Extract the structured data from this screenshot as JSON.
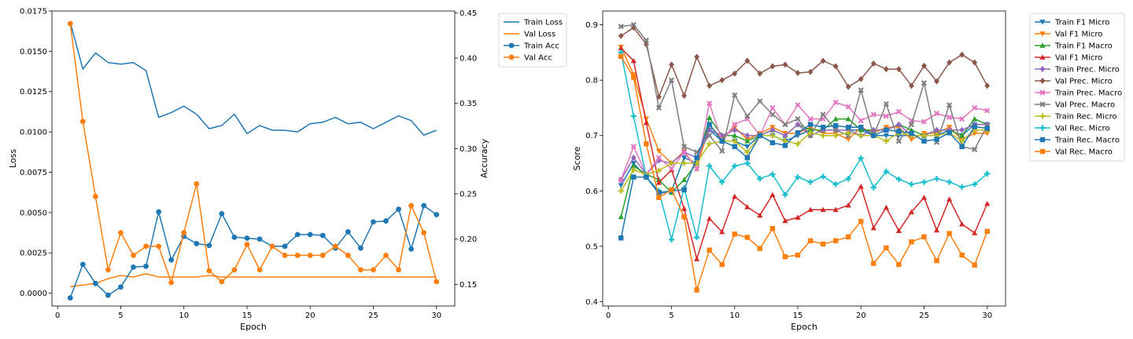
{
  "chart_data": [
    {
      "type": "line",
      "xlabel": "Epoch",
      "ylabel": "Loss",
      "y2label": "Accuracy",
      "xlim": [
        -0.45,
        31.45
      ],
      "ylim": [
        -0.0008,
        0.0175
      ],
      "y2lim": [
        0.126,
        0.452
      ],
      "xticks": [
        0,
        5,
        10,
        15,
        20,
        25,
        30
      ],
      "yticks": [
        0.0,
        0.0025,
        0.005,
        0.0075,
        0.01,
        0.0125,
        0.015,
        0.0175
      ],
      "ytick_labels": [
        "0.0000",
        "0.0025",
        "0.0050",
        "0.0075",
        "0.0100",
        "0.0125",
        "0.0150",
        "0.0175"
      ],
      "y2ticks": [
        0.15,
        0.2,
        0.25,
        0.3,
        0.35,
        0.4,
        0.45
      ],
      "y2tick_labels": [
        "0.15",
        "0.20",
        "0.25",
        "0.30",
        "0.35",
        "0.40",
        "0.45"
      ],
      "grid": false,
      "legend": "outside-right",
      "x": [
        1,
        2,
        3,
        4,
        5,
        6,
        7,
        8,
        9,
        10,
        11,
        12,
        13,
        14,
        15,
        16,
        17,
        18,
        19,
        20,
        21,
        22,
        23,
        24,
        25,
        26,
        27,
        28,
        29,
        30
      ],
      "series": [
        {
          "name": "Train Loss",
          "axis": "left",
          "color": "#1f77b4",
          "marker": "none",
          "values": [
            0.0168,
            0.0139,
            0.0149,
            0.0143,
            0.0142,
            0.0143,
            0.0138,
            0.0109,
            0.0112,
            0.0116,
            0.0111,
            0.0102,
            0.0104,
            0.0111,
            0.0099,
            0.0104,
            0.0101,
            0.0101,
            0.01,
            0.0105,
            0.0106,
            0.0109,
            0.0105,
            0.0106,
            0.0102,
            0.0106,
            0.011,
            0.0107,
            0.0098,
            0.0101
          ]
        },
        {
          "name": "Val Loss",
          "axis": "left",
          "color": "#ff7f0e",
          "marker": "none",
          "values": [
            0.0004,
            0.0005,
            0.0006,
            0.0009,
            0.0011,
            0.001,
            0.0012,
            0.001,
            0.001,
            0.001,
            0.001,
            0.0011,
            0.001,
            0.001,
            0.001,
            0.001,
            0.001,
            0.001,
            0.001,
            0.001,
            0.001,
            0.001,
            0.001,
            0.001,
            0.001,
            0.001,
            0.001,
            0.001,
            0.001,
            0.001
          ]
        },
        {
          "name": "Train Acc",
          "axis": "right",
          "color": "#1f77b4",
          "marker": "circle",
          "values": [
            0.135,
            0.172,
            0.151,
            0.138,
            0.147,
            0.169,
            0.17,
            0.23,
            0.177,
            0.203,
            0.195,
            0.193,
            0.228,
            0.202,
            0.201,
            0.2,
            0.192,
            0.192,
            0.205,
            0.205,
            0.204,
            0.19,
            0.208,
            0.19,
            0.219,
            0.22,
            0.233,
            0.189,
            0.237,
            0.227
          ]
        },
        {
          "name": "Val Acc",
          "axis": "right",
          "color": "#ff7f0e",
          "marker": "circle",
          "values": [
            0.438,
            0.33,
            0.247,
            0.166,
            0.207,
            0.182,
            0.192,
            0.192,
            0.152,
            0.207,
            0.261,
            0.165,
            0.153,
            0.166,
            0.194,
            0.166,
            0.192,
            0.182,
            0.182,
            0.182,
            0.182,
            0.192,
            0.182,
            0.166,
            0.166,
            0.182,
            0.166,
            0.237,
            0.207,
            0.153
          ]
        }
      ]
    },
    {
      "type": "line",
      "xlabel": "Epoch",
      "ylabel": "Score",
      "xlim": [
        -0.45,
        31.45
      ],
      "ylim": [
        0.392,
        0.925
      ],
      "xticks": [
        0,
        5,
        10,
        15,
        20,
        25,
        30
      ],
      "yticks": [
        0.4,
        0.5,
        0.6,
        0.7,
        0.8,
        0.9
      ],
      "ytick_labels": [
        "0.4",
        "0.5",
        "0.6",
        "0.7",
        "0.8",
        "0.9"
      ],
      "grid": false,
      "legend": "outside-right",
      "x": [
        1,
        2,
        3,
        4,
        5,
        6,
        7,
        8,
        9,
        10,
        11,
        12,
        13,
        14,
        15,
        16,
        17,
        18,
        19,
        20,
        21,
        22,
        23,
        24,
        25,
        26,
        27,
        28,
        29,
        30
      ],
      "series": [
        {
          "name": "Train F1 Micro",
          "color": "#1f77b4",
          "marker": "tri-down",
          "values": [
            0.61,
            0.65,
            0.625,
            0.595,
            0.6,
            0.66,
            0.65,
            0.71,
            0.69,
            0.69,
            0.68,
            0.7,
            0.7,
            0.69,
            0.7,
            0.71,
            0.71,
            0.71,
            0.71,
            0.71,
            0.7,
            0.7,
            0.7,
            0.7,
            0.7,
            0.7,
            0.71,
            0.7,
            0.72,
            0.72
          ]
        },
        {
          "name": "Val F1 Micro",
          "color": "#ff7f0e",
          "marker": "tri-down",
          "values": [
            0.86,
            0.81,
            0.73,
            0.672,
            0.65,
            0.672,
            0.64,
            0.72,
            0.693,
            0.715,
            0.693,
            0.704,
            0.715,
            0.704,
            0.704,
            0.715,
            0.704,
            0.704,
            0.693,
            0.715,
            0.704,
            0.715,
            0.715,
            0.693,
            0.704,
            0.704,
            0.715,
            0.693,
            0.704,
            0.704
          ]
        },
        {
          "name": "Train F1 Macro",
          "color": "#2ca02c",
          "marker": "tri-up",
          "values": [
            0.553,
            0.645,
            0.63,
            0.62,
            0.597,
            0.62,
            0.65,
            0.732,
            0.7,
            0.7,
            0.69,
            0.7,
            0.71,
            0.7,
            0.72,
            0.71,
            0.71,
            0.73,
            0.73,
            0.71,
            0.71,
            0.71,
            0.72,
            0.71,
            0.7,
            0.71,
            0.71,
            0.7,
            0.73,
            0.72
          ]
        },
        {
          "name": "Val F1 Micro",
          "color": "#d62728",
          "marker": "tri-up",
          "values": [
            0.858,
            0.835,
            0.723,
            0.615,
            0.638,
            0.568,
            0.477,
            0.55,
            0.526,
            0.59,
            0.571,
            0.556,
            0.593,
            0.546,
            0.552,
            0.566,
            0.566,
            0.566,
            0.574,
            0.608,
            0.533,
            0.57,
            0.528,
            0.562,
            0.588,
            0.529,
            0.585,
            0.54,
            0.524,
            0.577
          ]
        },
        {
          "name": "Train Prec. Micro",
          "color": "#9467bd",
          "marker": "diamond",
          "values": [
            0.62,
            0.66,
            0.63,
            0.655,
            0.65,
            0.67,
            0.66,
            0.71,
            0.7,
            0.71,
            0.7,
            0.7,
            0.71,
            0.7,
            0.72,
            0.7,
            0.71,
            0.71,
            0.71,
            0.7,
            0.71,
            0.71,
            0.72,
            0.7,
            0.7,
            0.71,
            0.71,
            0.71,
            0.72,
            0.72
          ]
        },
        {
          "name": "Val Prec. Micro",
          "color": "#8c564b",
          "marker": "diamond",
          "values": [
            0.88,
            0.895,
            0.865,
            0.77,
            0.828,
            0.772,
            0.842,
            0.79,
            0.8,
            0.812,
            0.835,
            0.812,
            0.825,
            0.828,
            0.813,
            0.815,
            0.835,
            0.825,
            0.788,
            0.802,
            0.83,
            0.82,
            0.82,
            0.79,
            0.826,
            0.798,
            0.832,
            0.846,
            0.832,
            0.79
          ]
        },
        {
          "name": "Train Prec. Macro",
          "color": "#e377c2",
          "marker": "x",
          "values": [
            0.62,
            0.68,
            0.63,
            0.66,
            0.64,
            0.67,
            0.64,
            0.758,
            0.69,
            0.72,
            0.73,
            0.7,
            0.75,
            0.72,
            0.755,
            0.73,
            0.73,
            0.76,
            0.752,
            0.727,
            0.738,
            0.735,
            0.743,
            0.727,
            0.725,
            0.74,
            0.733,
            0.73,
            0.75,
            0.745
          ]
        },
        {
          "name": "Val Prec. Macro",
          "color": "#7f7f7f",
          "marker": "x",
          "values": [
            0.897,
            0.9,
            0.872,
            0.75,
            0.8,
            0.68,
            0.67,
            0.7,
            0.672,
            0.773,
            0.735,
            0.762,
            0.738,
            0.72,
            0.73,
            0.7,
            0.738,
            0.71,
            0.7,
            0.782,
            0.7,
            0.757,
            0.69,
            0.72,
            0.795,
            0.688,
            0.755,
            0.68,
            0.675,
            0.718
          ]
        },
        {
          "name": "Train Rec. Micro",
          "color": "#bcbd22",
          "marker": "plus",
          "values": [
            0.6,
            0.638,
            0.63,
            0.637,
            0.65,
            0.65,
            0.65,
            0.685,
            0.69,
            0.69,
            0.67,
            0.7,
            0.7,
            0.69,
            0.685,
            0.705,
            0.7,
            0.7,
            0.705,
            0.7,
            0.7,
            0.69,
            0.705,
            0.7,
            0.7,
            0.7,
            0.705,
            0.69,
            0.71,
            0.71
          ]
        },
        {
          "name": "Val Rec. Micro",
          "color": "#17becf",
          "marker": "plus",
          "values": [
            0.85,
            0.735,
            0.625,
            0.6,
            0.512,
            0.605,
            0.516,
            0.645,
            0.616,
            0.645,
            0.65,
            0.622,
            0.63,
            0.593,
            0.625,
            0.616,
            0.626,
            0.612,
            0.622,
            0.659,
            0.606,
            0.635,
            0.621,
            0.612,
            0.616,
            0.622,
            0.616,
            0.607,
            0.612,
            0.631
          ]
        },
        {
          "name": "Train Rec. Macro",
          "color": "#1f77b4",
          "marker": "square",
          "values": [
            0.515,
            0.625,
            0.625,
            0.597,
            0.6,
            0.602,
            0.66,
            0.72,
            0.69,
            0.68,
            0.66,
            0.7,
            0.687,
            0.682,
            0.705,
            0.72,
            0.715,
            0.718,
            0.715,
            0.715,
            0.7,
            0.71,
            0.708,
            0.704,
            0.69,
            0.693,
            0.705,
            0.68,
            0.716,
            0.713
          ]
        },
        {
          "name": "Val Rec. Macro",
          "color": "#ff7f0e",
          "marker": "square",
          "values": [
            0.843,
            0.805,
            0.685,
            0.588,
            0.602,
            0.553,
            0.421,
            0.493,
            0.467,
            0.522,
            0.516,
            0.496,
            0.532,
            0.481,
            0.484,
            0.51,
            0.504,
            0.51,
            0.517,
            0.545,
            0.469,
            0.497,
            0.467,
            0.508,
            0.517,
            0.474,
            0.523,
            0.484,
            0.466,
            0.527
          ]
        }
      ]
    }
  ]
}
